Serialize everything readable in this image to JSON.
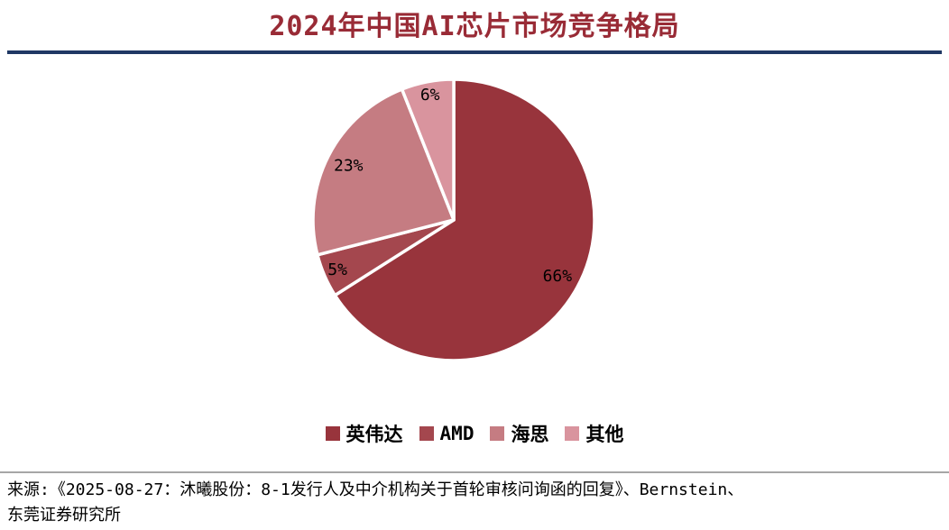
{
  "title": "2024年中国AI芯片市场竞争格局",
  "chart_data": {
    "type": "pie",
    "title": "2024年中国AI芯片市场竞争格局",
    "direction": "clockwise",
    "start_angle_deg": 0,
    "legend_position": "bottom",
    "label_format": "percent",
    "slices": [
      {
        "label": "英伟达",
        "value": 66,
        "display": "66%",
        "color": "#98343C"
      },
      {
        "label": "AMD",
        "value": 5,
        "display": "5%",
        "color": "#A4474E"
      },
      {
        "label": "海思",
        "value": 23,
        "display": "23%",
        "color": "#C57C82"
      },
      {
        "label": "其他",
        "value": 6,
        "display": "6%",
        "color": "#D9949E"
      }
    ]
  },
  "source": {
    "line1": "来源:《2025-08-27：沐曦股份：8-1发行人及中介机构关于首轮审核问询函的回复》、Bernstein、",
    "line2": "东莞证券研究所"
  },
  "colors": {
    "title_text": "#992B36",
    "title_rule": "#1F3864",
    "footer_rule": "#A6A6A6",
    "slice_border": "#FFFFFF",
    "label_text": "#000000"
  }
}
